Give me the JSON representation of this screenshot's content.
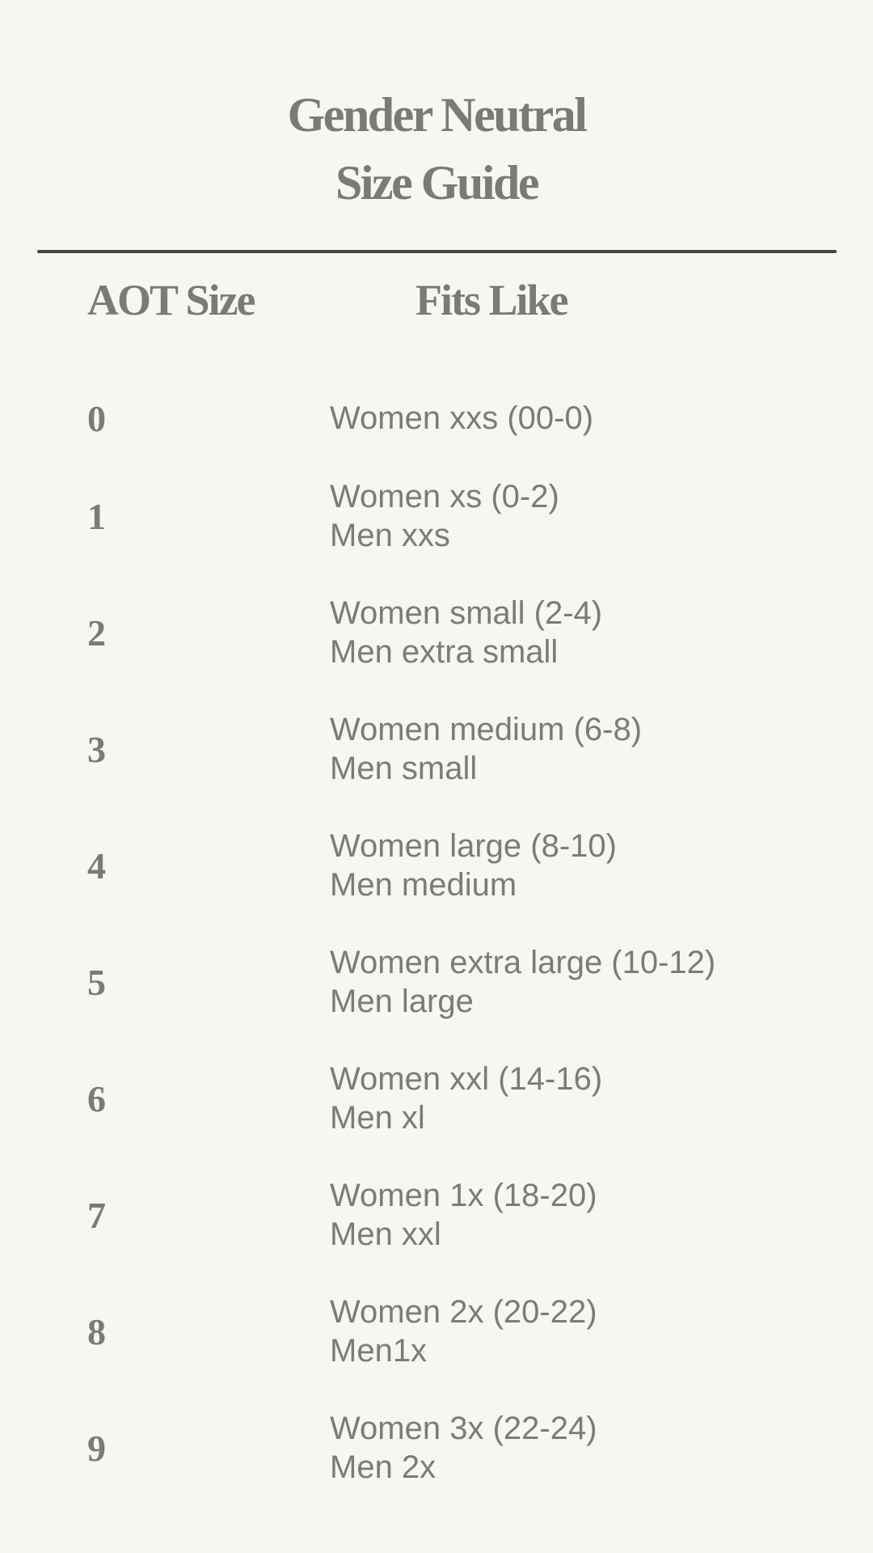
{
  "title": {
    "line1": "Gender Neutral",
    "line2": "Size Guide"
  },
  "headers": {
    "size": "AOT Size",
    "fits": "Fits Like"
  },
  "colors": {
    "background": "#f7f6f0",
    "text": "#7a7d73",
    "rule": "#3f4a3c"
  },
  "rows": [
    {
      "size": "0",
      "women": "Women xxs (00-0)",
      "men": ""
    },
    {
      "size": "1",
      "women": "Women xs (0-2)",
      "men": "Men xxs"
    },
    {
      "size": "2",
      "women": "Women small (2-4)",
      "men": "Men extra small"
    },
    {
      "size": "3",
      "women": "Women medium (6-8)",
      "men": "Men small"
    },
    {
      "size": "4",
      "women": "Women large (8-10)",
      "men": "Men medium"
    },
    {
      "size": "5",
      "women": "Women extra large (10-12)",
      "men": "Men large"
    },
    {
      "size": "6",
      "women": "Women xxl (14-16)",
      "men": "Men xl"
    },
    {
      "size": "7",
      "women": "Women 1x (18-20)",
      "men": "Men xxl"
    },
    {
      "size": "8",
      "women": "Women 2x (20-22)",
      "men": "Men1x"
    },
    {
      "size": "9",
      "women": "Women 3x (22-24)",
      "men": "Men 2x"
    }
  ]
}
